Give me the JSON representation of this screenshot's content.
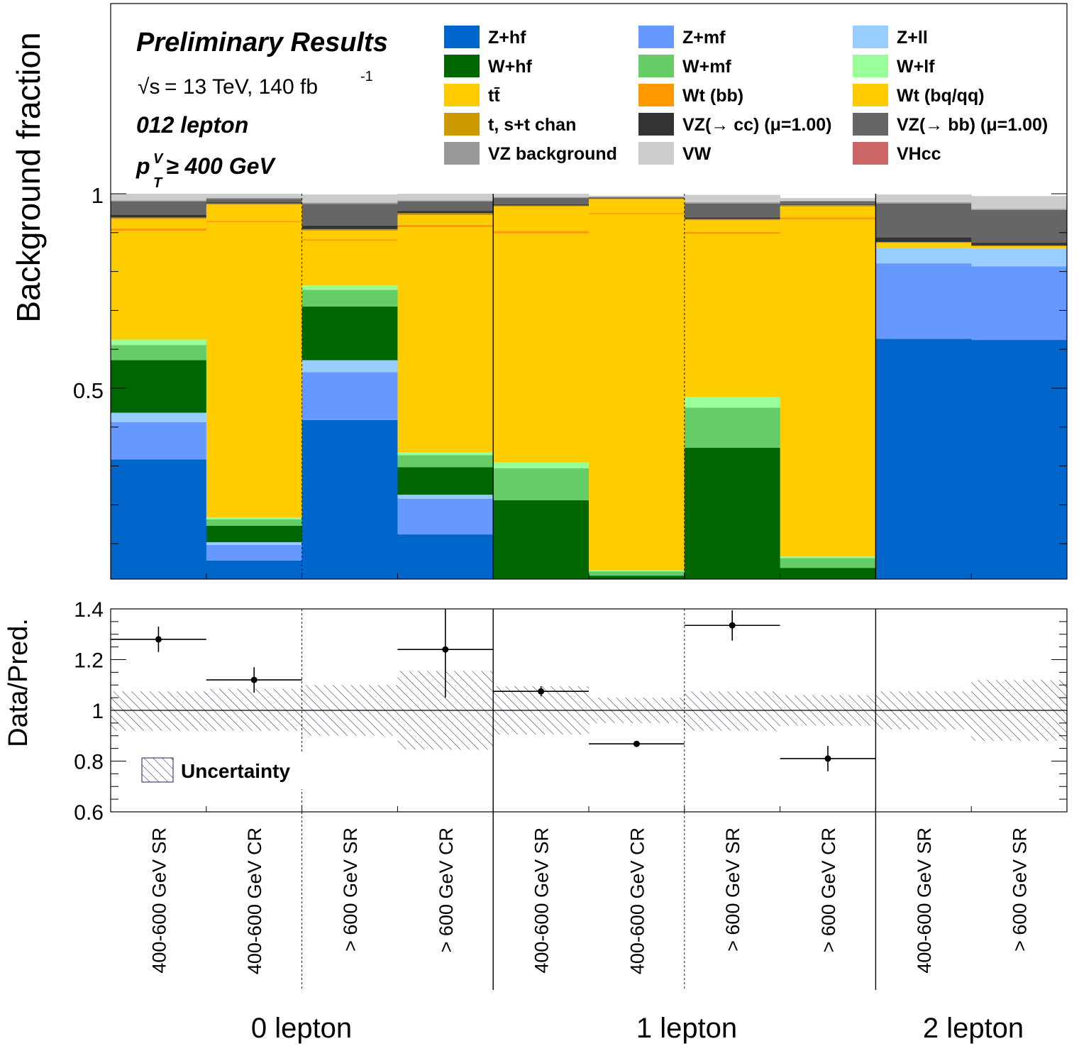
{
  "chart_data": {
    "type": "bar",
    "stacked": true,
    "categories": [
      "400-600 GeV SR",
      "400-600 GeV CR",
      "> 600 GeV SR",
      "> 600 GeV CR",
      "400-600 GeV SR",
      "400-600 GeV CR",
      "> 600 GeV SR",
      "> 600 GeV CR",
      "400-600 GeV SR",
      "> 600 GeV SR"
    ],
    "groups": [
      "0 lepton",
      "1 lepton",
      "2 lepton"
    ],
    "ylabel": "Background fraction",
    "yticks": [
      "0.5",
      "1"
    ],
    "annotations": {
      "title": "Preliminary Results",
      "energy": "= 13 TeV, 140 fb",
      "energy_sup": "-1",
      "sqrt": "√s",
      "channel": "012 lepton",
      "ptv_main": "p",
      "ptv_sup": "V",
      "ptv_sub": "T",
      "ptv_rest": " ≥ 400 GeV"
    },
    "series": [
      {
        "name": "Z+hf",
        "color": "#0066cc",
        "values": [
          0.317,
          0.057,
          0.418,
          0.124,
          0.0,
          0.0,
          0.0,
          0.0,
          0.627,
          0.624
        ]
      },
      {
        "name": "Z+mf",
        "color": "#6699ff",
        "values": [
          0.096,
          0.04,
          0.123,
          0.092,
          0.0,
          0.0,
          0.0,
          0.0,
          0.194,
          0.189
        ]
      },
      {
        "name": "Z+ll",
        "color": "#99ccff",
        "values": [
          0.024,
          0.007,
          0.031,
          0.01,
          0.0,
          0.0,
          0.0,
          0.0,
          0.04,
          0.046
        ]
      },
      {
        "name": "W+hf",
        "color": "#006600",
        "values": [
          0.135,
          0.042,
          0.138,
          0.071,
          0.212,
          0.018,
          0.347,
          0.038,
          0.0,
          0.0
        ]
      },
      {
        "name": "W+mf",
        "color": "#66cc66",
        "values": [
          0.039,
          0.017,
          0.043,
          0.031,
          0.082,
          0.011,
          0.103,
          0.025,
          0.0,
          0.0
        ]
      },
      {
        "name": "W+lf",
        "color": "#99ff99",
        "values": [
          0.014,
          0.005,
          0.011,
          0.007,
          0.015,
          0.003,
          0.027,
          0.004,
          0.0,
          0.0
        ]
      },
      {
        "name": "tt̄",
        "color": "#ffcc00",
        "values": [
          0.28,
          0.759,
          0.115,
          0.579,
          0.589,
          0.916,
          0.42,
          0.867,
          0.009,
          0.004
        ]
      },
      {
        "name": "Wt (bb)",
        "color": "#ff9900",
        "values": [
          0.006,
          0.003,
          0.004,
          0.006,
          0.006,
          0.003,
          0.005,
          0.005,
          0.0,
          0.0
        ]
      },
      {
        "name": "Wt (bq/qq)",
        "color": "#ffcc00",
        "values": [
          0.024,
          0.042,
          0.022,
          0.025,
          0.063,
          0.035,
          0.03,
          0.028,
          0.004,
          0.002
        ]
      },
      {
        "name": "t, s+t chan",
        "color": "#cc9900",
        "values": [
          0.004,
          0.003,
          0.004,
          0.005,
          0.003,
          0.002,
          0.003,
          0.004,
          0.002,
          0.002
        ]
      },
      {
        "name": "VZ(→ cc) (μ=1.00)",
        "color": "#333333",
        "values": [
          0.007,
          0.003,
          0.009,
          0.006,
          0.003,
          0.001,
          0.004,
          0.002,
          0.012,
          0.007
        ]
      },
      {
        "name": "VZ(→ bb) (μ=1.00)",
        "color": "#666666",
        "values": [
          0.034,
          0.009,
          0.056,
          0.024,
          0.016,
          0.002,
          0.036,
          0.007,
          0.087,
          0.084
        ]
      },
      {
        "name": "VZ background",
        "color": "#999999",
        "values": [
          0.003,
          0.002,
          0.003,
          0.003,
          0.002,
          0.001,
          0.003,
          0.002,
          0.003,
          0.003
        ]
      },
      {
        "name": "VW",
        "color": "#cccccc",
        "values": [
          0.017,
          0.011,
          0.021,
          0.017,
          0.009,
          0.003,
          0.019,
          0.007,
          0.02,
          0.033
        ]
      },
      {
        "name": "VHcc",
        "color": "#cc6666",
        "values": [
          0.0,
          0.0,
          0.0,
          0.0,
          0.0,
          0.0,
          0.0,
          0.0,
          0.0,
          0.0
        ]
      }
    ],
    "ratio_panel": {
      "ylabel": "Data/Pred.",
      "yticks": [
        "0.6",
        "0.8",
        "1",
        "1.2",
        "1.4"
      ],
      "ylim": [
        0.6,
        1.4
      ],
      "ratio": [
        1.28,
        1.12,
        null,
        1.24,
        1.075,
        0.868,
        1.335,
        0.81,
        null,
        null
      ],
      "err_lo": [
        0.05,
        0.05,
        null,
        0.19,
        0.02,
        0.01,
        0.06,
        0.05,
        null,
        null
      ],
      "err_hi": [
        0.05,
        0.05,
        null,
        0.16,
        0.02,
        0.01,
        0.06,
        0.05,
        null,
        null
      ],
      "unc_lo": [
        0.92,
        0.92,
        0.9,
        0.845,
        0.905,
        0.95,
        0.92,
        0.94,
        0.925,
        0.88
      ],
      "unc_hi": [
        1.075,
        1.085,
        1.1,
        1.155,
        1.095,
        1.05,
        1.075,
        1.06,
        1.075,
        1.12
      ],
      "legend_label": "Uncertainty"
    }
  }
}
